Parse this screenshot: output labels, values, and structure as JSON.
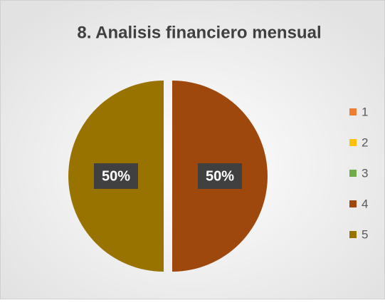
{
  "chart_data": {
    "type": "pie",
    "title": "8. Analisis financiero mensual",
    "categories": [
      "1",
      "2",
      "3",
      "4",
      "5"
    ],
    "values": [
      0,
      0,
      0,
      50,
      50
    ],
    "value_labels": [
      null,
      null,
      null,
      "50%",
      "50%"
    ],
    "colors": [
      "#ED7D31",
      "#FFC000",
      "#70AD47",
      "#9E480E",
      "#997300"
    ],
    "legend": "right"
  }
}
